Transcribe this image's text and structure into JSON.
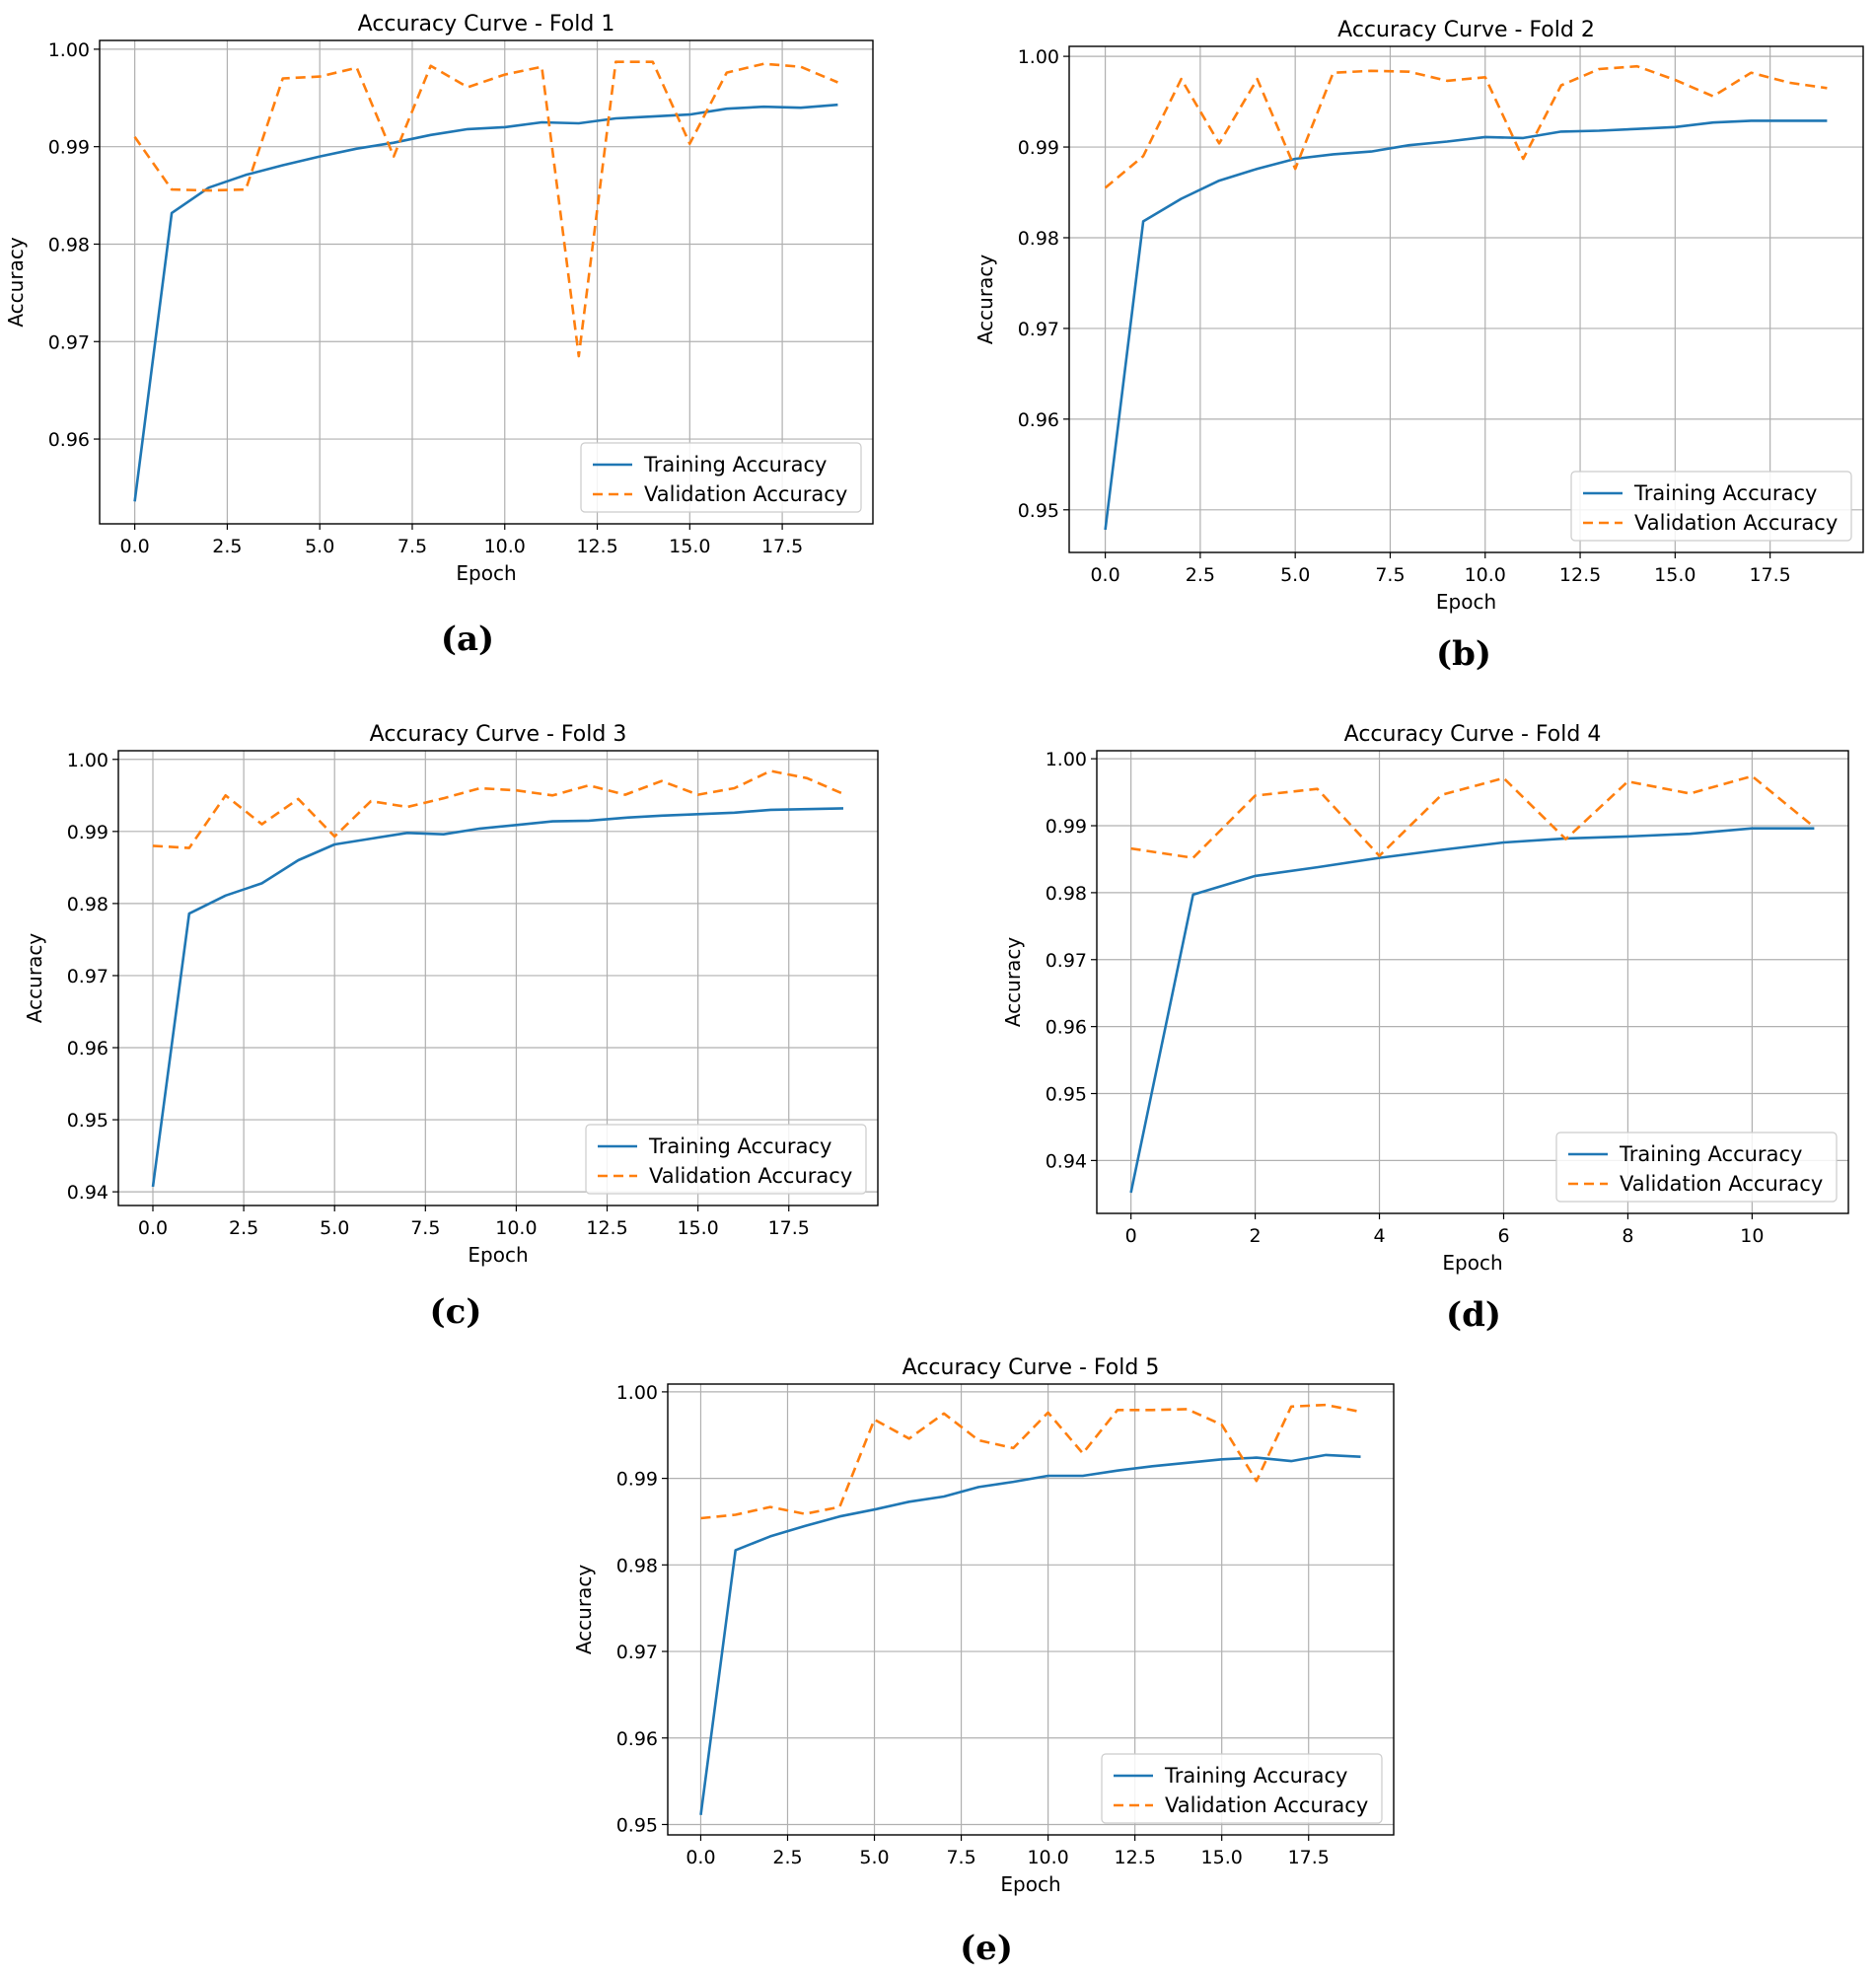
{
  "legend": {
    "training": "Training Accuracy",
    "validation": "Validation Accuracy",
    "training_color": "#1f77b4",
    "validation_color": "#ff7f0e"
  },
  "captions": [
    "(a)",
    "(b)",
    "(c)",
    "(d)",
    "(e)"
  ],
  "chart_data": [
    {
      "type": "line",
      "title": "Accuracy Curve - Fold 1",
      "xlabel": "Epoch",
      "ylabel": "Accuracy",
      "grid": true,
      "legend_position": "lower-right",
      "xlim": [
        -0.95,
        19.95
      ],
      "ylim": [
        0.9513,
        1.0009
      ],
      "xticks": [
        0.0,
        2.5,
        5.0,
        7.5,
        10.0,
        12.5,
        15.0,
        17.5
      ],
      "xtick_labels": [
        "0.0",
        "2.5",
        "5.0",
        "7.5",
        "10.0",
        "12.5",
        "15.0",
        "17.5"
      ],
      "yticks": [
        0.96,
        0.97,
        0.98,
        0.99,
        1.0
      ],
      "ytick_labels": [
        "0.96",
        "0.97",
        "0.98",
        "0.99",
        "1.00"
      ],
      "x": [
        0,
        1,
        2,
        3,
        4,
        5,
        6,
        7,
        8,
        9,
        10,
        11,
        12,
        13,
        14,
        15,
        16,
        17,
        18,
        19
      ],
      "series": [
        {
          "name": "Training Accuracy",
          "values": [
            0.9536,
            0.9832,
            0.9858,
            0.9871,
            0.9881,
            0.989,
            0.9898,
            0.9904,
            0.9912,
            0.9918,
            0.992,
            0.9925,
            0.9924,
            0.9929,
            0.9931,
            0.9933,
            0.9939,
            0.9941,
            0.994,
            0.9943
          ]
        },
        {
          "name": "Validation Accuracy",
          "values": [
            0.991,
            0.9856,
            0.9855,
            0.9856,
            0.997,
            0.9972,
            0.9981,
            0.989,
            0.9983,
            0.9961,
            0.9974,
            0.9982,
            0.9685,
            0.9987,
            0.9987,
            0.9903,
            0.9976,
            0.9985,
            0.9982,
            0.9966
          ]
        }
      ]
    },
    {
      "type": "line",
      "title": "Accuracy Curve - Fold 2",
      "xlabel": "Epoch",
      "ylabel": "Accuracy",
      "grid": true,
      "legend_position": "lower-right",
      "xlim": [
        -0.95,
        19.95
      ],
      "ylim": [
        0.9453,
        1.0011
      ],
      "xticks": [
        0.0,
        2.5,
        5.0,
        7.5,
        10.0,
        12.5,
        15.0,
        17.5
      ],
      "xtick_labels": [
        "0.0",
        "2.5",
        "5.0",
        "7.5",
        "10.0",
        "12.5",
        "15.0",
        "17.5"
      ],
      "yticks": [
        0.95,
        0.96,
        0.97,
        0.98,
        0.99,
        1.0
      ],
      "ytick_labels": [
        "0.95",
        "0.96",
        "0.97",
        "0.98",
        "0.99",
        "1.00"
      ],
      "x": [
        0,
        1,
        2,
        3,
        4,
        5,
        6,
        7,
        8,
        9,
        10,
        11,
        12,
        13,
        14,
        15,
        16,
        17,
        18,
        19
      ],
      "series": [
        {
          "name": "Training Accuracy",
          "values": [
            0.9478,
            0.9818,
            0.9843,
            0.9863,
            0.9876,
            0.9887,
            0.9892,
            0.9895,
            0.9902,
            0.9906,
            0.9911,
            0.991,
            0.9917,
            0.9918,
            0.992,
            0.9922,
            0.9927,
            0.9929,
            0.9929,
            0.9929
          ]
        },
        {
          "name": "Validation Accuracy",
          "values": [
            0.9855,
            0.989,
            0.9975,
            0.9904,
            0.9975,
            0.9876,
            0.9982,
            0.9984,
            0.9983,
            0.9973,
            0.9977,
            0.9887,
            0.9968,
            0.9986,
            0.9989,
            0.9974,
            0.9956,
            0.9982,
            0.9971,
            0.9965
          ]
        }
      ]
    },
    {
      "type": "line",
      "title": "Accuracy Curve - Fold 3",
      "xlabel": "Epoch",
      "ylabel": "Accuracy",
      "grid": true,
      "legend_position": "lower-right",
      "xlim": [
        -0.95,
        19.95
      ],
      "ylim": [
        0.9381,
        1.0012
      ],
      "xticks": [
        0.0,
        2.5,
        5.0,
        7.5,
        10.0,
        12.5,
        15.0,
        17.5
      ],
      "xtick_labels": [
        "0.0",
        "2.5",
        "5.0",
        "7.5",
        "10.0",
        "12.5",
        "15.0",
        "17.5"
      ],
      "yticks": [
        0.94,
        0.95,
        0.96,
        0.97,
        0.98,
        0.99,
        1.0
      ],
      "ytick_labels": [
        "0.94",
        "0.95",
        "0.96",
        "0.97",
        "0.98",
        "0.99",
        "1.00"
      ],
      "x": [
        0,
        1,
        2,
        3,
        4,
        5,
        6,
        7,
        8,
        9,
        10,
        11,
        12,
        13,
        14,
        15,
        16,
        17,
        18,
        19
      ],
      "series": [
        {
          "name": "Training Accuracy",
          "values": [
            0.9407,
            0.9786,
            0.9811,
            0.9828,
            0.986,
            0.9882,
            0.989,
            0.9898,
            0.9896,
            0.9904,
            0.9909,
            0.9914,
            0.9915,
            0.9919,
            0.9922,
            0.9924,
            0.9926,
            0.993,
            0.9931,
            0.9932
          ]
        },
        {
          "name": "Validation Accuracy",
          "values": [
            0.988,
            0.9877,
            0.995,
            0.991,
            0.9945,
            0.9893,
            0.9942,
            0.9934,
            0.9946,
            0.996,
            0.9957,
            0.995,
            0.9964,
            0.9951,
            0.997,
            0.9951,
            0.996,
            0.9984,
            0.9974,
            0.9952
          ]
        }
      ]
    },
    {
      "type": "line",
      "title": "Accuracy Curve - Fold 4",
      "xlabel": "Epoch",
      "ylabel": "Accuracy",
      "grid": true,
      "legend_position": "lower-right",
      "xlim": [
        -0.55,
        11.55
      ],
      "ylim": [
        0.9321,
        1.0012
      ],
      "xticks": [
        0,
        2,
        4,
        6,
        8,
        10
      ],
      "xtick_labels": [
        "0",
        "2",
        "4",
        "6",
        "8",
        "10"
      ],
      "yticks": [
        0.94,
        0.95,
        0.96,
        0.97,
        0.98,
        0.99,
        1.0
      ],
      "ytick_labels": [
        "0.94",
        "0.95",
        "0.96",
        "0.97",
        "0.98",
        "0.99",
        "1.00"
      ],
      "x": [
        0,
        1,
        2,
        3,
        4,
        5,
        6,
        7,
        8,
        9,
        10,
        11
      ],
      "series": [
        {
          "name": "Training Accuracy",
          "values": [
            0.9352,
            0.9797,
            0.9825,
            0.9838,
            0.9852,
            0.9864,
            0.9875,
            0.9881,
            0.9884,
            0.9888,
            0.9896,
            0.9896
          ]
        },
        {
          "name": "Validation Accuracy",
          "values": [
            0.9866,
            0.9852,
            0.9945,
            0.9955,
            0.9855,
            0.9946,
            0.9971,
            0.988,
            0.9966,
            0.9948,
            0.9974,
            0.9898
          ]
        }
      ]
    },
    {
      "type": "line",
      "title": "Accuracy Curve - Fold 5",
      "xlabel": "Epoch",
      "ylabel": "Accuracy",
      "grid": true,
      "legend_position": "lower-right",
      "xlim": [
        -0.95,
        19.95
      ],
      "ylim": [
        0.9488,
        1.0009
      ],
      "xticks": [
        0.0,
        2.5,
        5.0,
        7.5,
        10.0,
        12.5,
        15.0,
        17.5
      ],
      "xtick_labels": [
        "0.0",
        "2.5",
        "5.0",
        "7.5",
        "10.0",
        "12.5",
        "15.0",
        "17.5"
      ],
      "yticks": [
        0.95,
        0.96,
        0.97,
        0.98,
        0.99,
        1.0
      ],
      "ytick_labels": [
        "0.95",
        "0.96",
        "0.97",
        "0.98",
        "0.99",
        "1.00"
      ],
      "x": [
        0,
        1,
        2,
        3,
        4,
        5,
        6,
        7,
        8,
        9,
        10,
        11,
        12,
        13,
        14,
        15,
        16,
        17,
        18,
        19
      ],
      "series": [
        {
          "name": "Training Accuracy",
          "values": [
            0.9511,
            0.9817,
            0.9833,
            0.9845,
            0.9856,
            0.9864,
            0.9873,
            0.9879,
            0.989,
            0.9896,
            0.9903,
            0.9903,
            0.9909,
            0.9914,
            0.9918,
            0.9922,
            0.9924,
            0.992,
            0.9927,
            0.9925
          ]
        },
        {
          "name": "Validation Accuracy",
          "values": [
            0.9854,
            0.9858,
            0.9867,
            0.9859,
            0.9867,
            0.9968,
            0.9946,
            0.9975,
            0.9944,
            0.9935,
            0.9976,
            0.9929,
            0.9979,
            0.9979,
            0.998,
            0.9962,
            0.9897,
            0.9983,
            0.9985,
            0.9977
          ]
        }
      ]
    }
  ]
}
